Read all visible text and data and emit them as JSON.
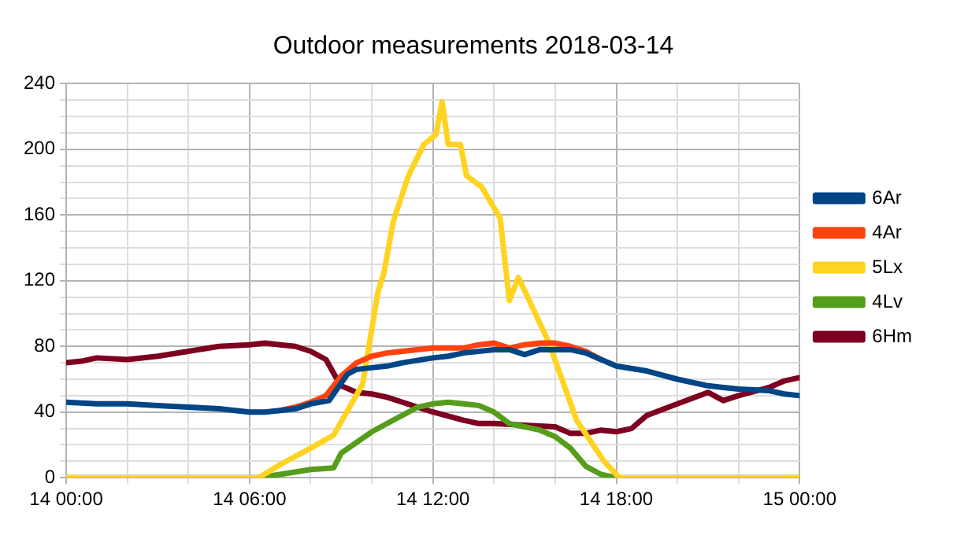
{
  "chart_data": {
    "type": "line",
    "title": "Outdoor measurements 2018-03-14",
    "xlim": [
      "2018-03-14T00:00",
      "2018-03-15T00:00"
    ],
    "xticks": [
      {
        "value": "2018-03-14T00:00",
        "label": "14 00:00"
      },
      {
        "value": "2018-03-14T02:00",
        "label": null
      },
      {
        "value": "2018-03-14T04:00",
        "label": null
      },
      {
        "value": "2018-03-14T06:00",
        "label": "14 06:00"
      },
      {
        "value": "2018-03-14T08:00",
        "label": null
      },
      {
        "value": "2018-03-14T10:00",
        "label": null
      },
      {
        "value": "2018-03-14T12:00",
        "label": "14 12:00"
      },
      {
        "value": "2018-03-14T14:00",
        "label": null
      },
      {
        "value": "2018-03-14T16:00",
        "label": null
      },
      {
        "value": "2018-03-14T18:00",
        "label": "14 18:00"
      },
      {
        "value": "2018-03-14T20:00",
        "label": null
      },
      {
        "value": "2018-03-14T22:00",
        "label": null
      },
      {
        "value": "2018-03-15T00:00",
        "label": "15 00:00"
      }
    ],
    "ylim": [
      0,
      240
    ],
    "yticks": [
      0,
      {
        "value": 10,
        "label": null
      },
      {
        "value": 20,
        "label": null
      },
      {
        "value": 30,
        "label": null
      },
      40,
      {
        "value": 50,
        "label": null
      },
      {
        "value": 60,
        "label": null
      },
      {
        "value": 70,
        "label": null
      },
      80,
      {
        "value": 90,
        "label": null
      },
      {
        "value": 100,
        "label": null
      },
      {
        "value": 110,
        "label": null
      },
      120,
      {
        "value": 130,
        "label": null
      },
      {
        "value": 140,
        "label": null
      },
      {
        "value": 150,
        "label": null
      },
      160,
      {
        "value": 170,
        "label": null
      },
      {
        "value": 180,
        "label": null
      },
      {
        "value": 190,
        "label": null
      },
      200,
      {
        "value": 210,
        "label": null
      },
      {
        "value": 220,
        "label": null
      },
      {
        "value": 230,
        "label": null
      },
      240
    ],
    "grid": true,
    "legend": "right",
    "marker": "none",
    "line_style": "solid",
    "series": [
      {
        "name": "6Ar",
        "color": "#004586",
        "x": [
          "2018-03-14T00:00",
          "2018-03-14T01:00",
          "2018-03-14T02:00",
          "2018-03-14T03:00",
          "2018-03-14T04:00",
          "2018-03-14T05:00",
          "2018-03-14T06:00",
          "2018-03-14T06:30",
          "2018-03-14T07:00",
          "2018-03-14T07:30",
          "2018-03-14T08:00",
          "2018-03-14T08:36",
          "2018-03-14T09:12",
          "2018-03-14T09:30",
          "2018-03-14T10:00",
          "2018-03-14T10:30",
          "2018-03-14T11:00",
          "2018-03-14T12:00",
          "2018-03-14T12:30",
          "2018-03-14T13:00",
          "2018-03-14T14:00",
          "2018-03-14T14:30",
          "2018-03-14T15:00",
          "2018-03-14T15:30",
          "2018-03-14T16:30",
          "2018-03-14T17:00",
          "2018-03-14T17:30",
          "2018-03-14T18:00",
          "2018-03-14T19:00",
          "2018-03-14T20:00",
          "2018-03-14T21:00",
          "2018-03-14T21:30",
          "2018-03-14T22:00",
          "2018-03-14T23:00",
          "2018-03-14T23:30",
          "2018-03-15T00:00"
        ],
        "values": [
          46,
          45,
          45,
          44,
          43,
          42,
          40,
          40,
          41,
          42,
          45,
          47,
          63,
          66,
          67,
          68,
          70,
          73,
          74,
          76,
          78,
          78,
          75,
          78,
          78,
          76,
          72,
          68,
          65,
          60,
          56,
          55,
          54,
          53,
          51,
          50
        ]
      },
      {
        "name": "4Ar",
        "color": "#ff420e",
        "x": [
          "2018-03-14T07:00",
          "2018-03-14T07:30",
          "2018-03-14T08:00",
          "2018-03-14T08:30",
          "2018-03-14T09:00",
          "2018-03-14T09:30",
          "2018-03-14T10:00",
          "2018-03-14T10:30",
          "2018-03-14T11:00",
          "2018-03-14T12:00",
          "2018-03-14T13:00",
          "2018-03-14T13:30",
          "2018-03-14T14:00",
          "2018-03-14T14:30",
          "2018-03-14T15:00",
          "2018-03-14T15:30",
          "2018-03-14T16:00",
          "2018-03-14T16:30",
          "2018-03-14T17:00",
          "2018-03-14T17:30"
        ],
        "values": [
          41,
          43,
          46,
          50,
          62,
          70,
          74,
          76,
          77,
          79,
          79,
          81,
          82,
          79,
          81,
          82,
          82,
          80,
          77,
          72
        ]
      },
      {
        "name": "5Lx",
        "color": "#ffd320",
        "x": [
          "2018-03-14T00:00",
          "2018-03-14T06:18",
          "2018-03-14T07:00",
          "2018-03-14T08:00",
          "2018-03-14T08:45",
          "2018-03-14T09:42",
          "2018-03-14T10:12",
          "2018-03-14T10:24",
          "2018-03-14T10:42",
          "2018-03-14T11:12",
          "2018-03-14T11:42",
          "2018-03-14T12:06",
          "2018-03-14T12:18",
          "2018-03-14T12:30",
          "2018-03-14T12:54",
          "2018-03-14T13:06",
          "2018-03-14T13:36",
          "2018-03-14T14:12",
          "2018-03-14T14:30",
          "2018-03-14T14:48",
          "2018-03-14T15:48",
          "2018-03-14T16:42",
          "2018-03-14T17:36",
          "2018-03-14T18:06",
          "2018-03-15T00:00"
        ],
        "values": [
          0,
          0,
          8,
          18,
          26,
          57,
          113,
          125,
          156,
          184,
          203,
          209,
          229,
          203,
          203,
          184,
          177,
          158,
          108,
          122,
          82,
          35,
          10,
          0,
          0
        ]
      },
      {
        "name": "4Lv",
        "color": "#579d1c",
        "x": [
          "2018-03-14T00:00",
          "2018-03-14T06:18",
          "2018-03-14T07:00",
          "2018-03-14T08:00",
          "2018-03-14T08:45",
          "2018-03-14T09:00",
          "2018-03-14T10:00",
          "2018-03-14T11:00",
          "2018-03-14T11:30",
          "2018-03-14T12:00",
          "2018-03-14T12:30",
          "2018-03-14T13:00",
          "2018-03-14T13:30",
          "2018-03-14T14:00",
          "2018-03-14T14:30",
          "2018-03-14T15:00",
          "2018-03-14T15:30",
          "2018-03-14T16:00",
          "2018-03-14T16:30",
          "2018-03-14T17:00",
          "2018-03-14T17:30",
          "2018-03-14T18:00",
          "2018-03-15T00:00"
        ],
        "values": [
          0,
          0,
          2,
          5,
          6,
          15,
          28,
          38,
          43,
          45,
          46,
          45,
          44,
          40,
          33,
          31,
          29,
          25,
          18,
          7,
          2,
          0,
          0
        ]
      },
      {
        "name": "6Hm",
        "color": "#7e0021",
        "x": [
          "2018-03-14T00:00",
          "2018-03-14T00:30",
          "2018-03-14T01:00",
          "2018-03-14T02:00",
          "2018-03-14T03:00",
          "2018-03-14T04:00",
          "2018-03-14T05:00",
          "2018-03-14T06:00",
          "2018-03-14T06:30",
          "2018-03-14T07:00",
          "2018-03-14T07:30",
          "2018-03-14T08:00",
          "2018-03-14T08:30",
          "2018-03-14T08:48",
          "2018-03-14T09:00",
          "2018-03-14T09:30",
          "2018-03-14T10:00",
          "2018-03-14T10:30",
          "2018-03-14T11:00",
          "2018-03-14T11:30",
          "2018-03-14T12:00",
          "2018-03-14T13:00",
          "2018-03-14T13:30",
          "2018-03-14T14:00",
          "2018-03-14T15:00",
          "2018-03-14T16:00",
          "2018-03-14T16:30",
          "2018-03-14T17:00",
          "2018-03-14T17:30",
          "2018-03-14T18:00",
          "2018-03-14T18:30",
          "2018-03-14T19:00",
          "2018-03-14T20:00",
          "2018-03-14T21:00",
          "2018-03-14T21:30",
          "2018-03-14T22:00",
          "2018-03-14T23:00",
          "2018-03-14T23:30",
          "2018-03-15T00:00"
        ],
        "values": [
          70,
          71,
          73,
          72,
          74,
          77,
          80,
          81,
          82,
          81,
          80,
          77,
          72,
          62,
          56,
          52,
          51,
          49,
          46,
          43,
          40,
          35,
          33,
          33,
          32,
          31,
          27,
          27,
          29,
          28,
          30,
          38,
          45,
          52,
          47,
          50,
          55,
          59,
          61
        ]
      }
    ]
  }
}
